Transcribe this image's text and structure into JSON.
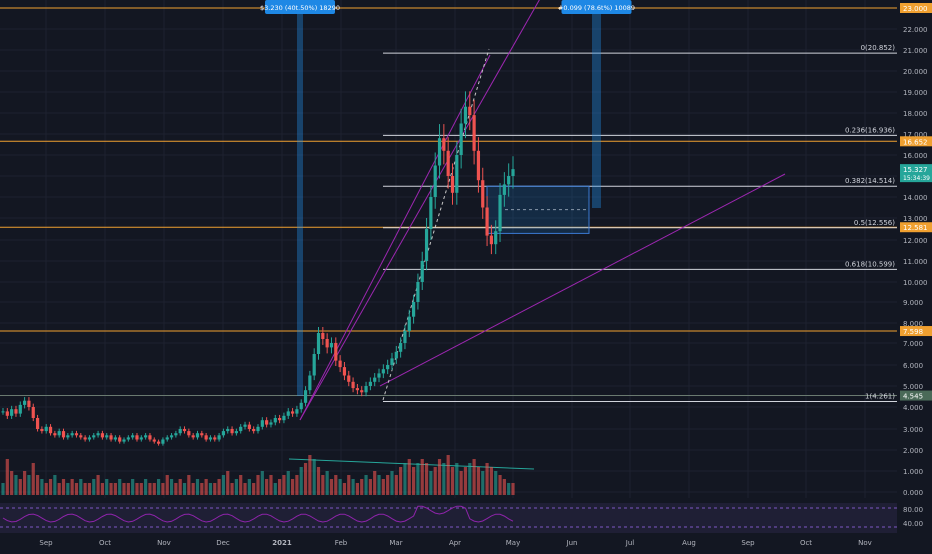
{
  "chart_data": {
    "type": "candlestick",
    "symbol_quote": "USDT",
    "colors": {
      "background": "#131722",
      "up": "#26a69a",
      "down": "#ef5350",
      "fib_line": "#d1d4dc",
      "horizontal_level": "#f0a030",
      "trendline": "#9c27b0",
      "range_box": "#1e88e5",
      "rsi_line": "#8e24aa"
    },
    "price_axis": {
      "ticks": [
        "22.000",
        "21.000",
        "20.000",
        "19.000",
        "18.000",
        "17.000",
        "16.000",
        "15.000",
        "14.000",
        "13.000",
        "12.000",
        "11.000",
        "10.000",
        "9.000",
        "8.000",
        "7.000",
        "6.000",
        "5.000",
        "4.000",
        "3.000",
        "2.000",
        "1.000",
        "0.000"
      ],
      "tick_values": [
        22,
        21,
        20,
        19,
        18,
        17,
        16,
        15,
        14,
        13,
        12,
        11,
        10,
        9,
        8,
        7,
        6,
        5,
        4,
        3,
        2,
        1,
        0
      ],
      "scale": "log-like"
    },
    "rsi_axis": {
      "ticks": [
        "80.00",
        "40.00"
      ]
    },
    "time_axis": {
      "labels": [
        "Sep",
        "Oct",
        "Nov",
        "Dec",
        "2021",
        "Feb",
        "Mar",
        "Apr",
        "May",
        "Jun",
        "Jul",
        "Aug",
        "Sep",
        "Oct",
        "Nov"
      ]
    },
    "price_badges": [
      {
        "text": "23.000",
        "value": 23.0,
        "color": "#f0a030"
      },
      {
        "text": "16.652",
        "value": 16.652,
        "color": "#f0a030"
      },
      {
        "text": "15.327",
        "value": 15.327,
        "color": "#26a69a",
        "sub": "15:34:39"
      },
      {
        "text": "12.581",
        "value": 12.581,
        "color": "#f0a030"
      },
      {
        "text": "7.598",
        "value": 7.598,
        "color": "#f0a030"
      },
      {
        "text": "4.545",
        "value": 4.545,
        "color": "#4a6a58"
      }
    ],
    "fib_levels": [
      {
        "label": "0(20.852)",
        "value": 20.852
      },
      {
        "label": "0.236(16.936)",
        "value": 16.936
      },
      {
        "label": "0.382(14.514)",
        "value": 14.514
      },
      {
        "label": "0.5(12.556)",
        "value": 12.556
      },
      {
        "label": "0.618(10.599)",
        "value": 10.599
      },
      {
        "label": "1(4.261)",
        "value": 4.261
      }
    ],
    "horizontal_levels": [
      23.0,
      16.652,
      12.581,
      7.598
    ],
    "range_annotations": [
      {
        "text": "$3.230 (40t.50%) 18290",
        "start": "2021-01-13",
        "end": "2021-01-17"
      },
      {
        "text": "#0.099 (78.6t%) 10089",
        "start": "2021-06-06",
        "end": "2021-06-10"
      }
    ],
    "candles_close": [
      3.8,
      3.6,
      3.9,
      3.7,
      4.1,
      4.3,
      4.0,
      3.5,
      3.0,
      2.9,
      3.1,
      2.8,
      2.7,
      2.9,
      2.6,
      2.7,
      2.8,
      2.7,
      2.6,
      2.5,
      2.6,
      2.7,
      2.8,
      2.6,
      2.7,
      2.5,
      2.6,
      2.4,
      2.5,
      2.6,
      2.7,
      2.5,
      2.6,
      2.7,
      2.5,
      2.4,
      2.3,
      2.5,
      2.6,
      2.7,
      2.8,
      3.0,
      2.9,
      2.7,
      2.6,
      2.8,
      2.7,
      2.5,
      2.6,
      2.5,
      2.7,
      2.9,
      3.0,
      2.8,
      2.9,
      3.1,
      3.2,
      3.0,
      2.9,
      3.1,
      3.4,
      3.2,
      3.3,
      3.5,
      3.4,
      3.6,
      3.8,
      3.7,
      3.9,
      4.2,
      4.8,
      5.5,
      6.5,
      7.5,
      7.2,
      6.8,
      7.0,
      6.2,
      5.9,
      5.5,
      5.2,
      4.9,
      4.8,
      4.7,
      5.0,
      5.2,
      5.4,
      5.6,
      5.8,
      6.0,
      6.3,
      6.6,
      7.0,
      7.6,
      8.3,
      9.0,
      10.0,
      11.0,
      12.5,
      14.0,
      15.5,
      16.8,
      16.2,
      15.0,
      14.2,
      16.0,
      17.5,
      18.3,
      17.9,
      16.2,
      14.8,
      13.5,
      12.2,
      11.8,
      12.4,
      14.1,
      14.6,
      15.0,
      15.327
    ],
    "volume_relative": [
      0.3,
      0.9,
      0.6,
      0.5,
      0.4,
      0.6,
      0.5,
      0.8,
      0.5,
      0.4,
      0.3,
      0.4,
      0.5,
      0.3,
      0.4,
      0.3,
      0.4,
      0.3,
      0.4,
      0.3,
      0.3,
      0.4,
      0.5,
      0.3,
      0.4,
      0.3,
      0.3,
      0.4,
      0.3,
      0.3,
      0.4,
      0.3,
      0.3,
      0.4,
      0.3,
      0.3,
      0.4,
      0.3,
      0.5,
      0.4,
      0.3,
      0.4,
      0.3,
      0.5,
      0.3,
      0.4,
      0.3,
      0.4,
      0.3,
      0.3,
      0.4,
      0.5,
      0.6,
      0.3,
      0.4,
      0.5,
      0.3,
      0.4,
      0.3,
      0.5,
      0.6,
      0.4,
      0.5,
      0.3,
      0.4,
      0.5,
      0.6,
      0.4,
      0.5,
      0.7,
      0.8,
      1.0,
      0.9,
      0.7,
      0.5,
      0.6,
      0.4,
      0.5,
      0.4,
      0.3,
      0.5,
      0.4,
      0.3,
      0.4,
      0.5,
      0.4,
      0.6,
      0.5,
      0.4,
      0.5,
      0.6,
      0.5,
      0.7,
      0.8,
      0.9,
      0.7,
      0.8,
      0.9,
      0.8,
      0.6,
      0.7,
      0.9,
      0.8,
      1.0,
      0.7,
      0.8,
      0.6,
      0.7,
      0.8,
      0.9,
      0.7,
      0.6,
      0.8,
      0.7,
      0.6,
      0.5,
      0.4,
      0.3,
      0.3
    ],
    "volume_axis": {
      "ticks": [
        "2.000",
        "1.000",
        "0.000"
      ],
      "tick_values": [
        2,
        1,
        0
      ]
    }
  }
}
